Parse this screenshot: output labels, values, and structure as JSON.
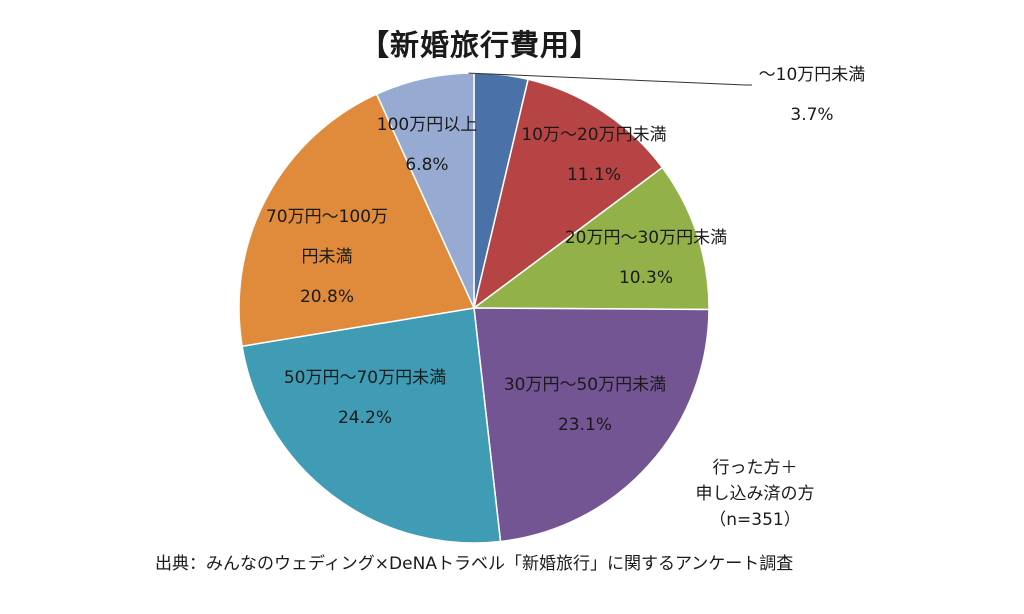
{
  "chart_data": {
    "type": "pie",
    "title": "【新婚旅行費用】",
    "slices": [
      {
        "label": "～10万円未満",
        "value": 3.7,
        "value_label": "3.7%",
        "color": "#4a72a8"
      },
      {
        "label": "10万～20万円未満",
        "value": 11.1,
        "value_label": "11.1%",
        "color": "#b64444"
      },
      {
        "label": "20万円～30万円未満",
        "value": 10.3,
        "value_label": "10.3%",
        "color": "#92b148"
      },
      {
        "label": "30万円～50万円未満",
        "value": 23.1,
        "value_label": "23.1%",
        "color": "#735594"
      },
      {
        "label": "50万円～70万円未満",
        "value": 24.2,
        "value_label": "24.2%",
        "color": "#3f9cb4"
      },
      {
        "label": "70万円～100万円未満",
        "label_lines": [
          "70万円～100万",
          "円未満"
        ],
        "value": 20.8,
        "value_label": "20.8%",
        "color": "#e08a3c"
      },
      {
        "label": "100万円以上",
        "value": 6.8,
        "value_label": "6.8%",
        "color": "#97abd2"
      }
    ],
    "start_angle": "12 o'clock",
    "direction": "clockwise",
    "note_lines": [
      "行った方＋",
      "申し込み済の方",
      "（n=351）"
    ],
    "source": "出典：みんなのウェディング×DeNAトラベル「新婚旅行」に関するアンケート調査"
  }
}
